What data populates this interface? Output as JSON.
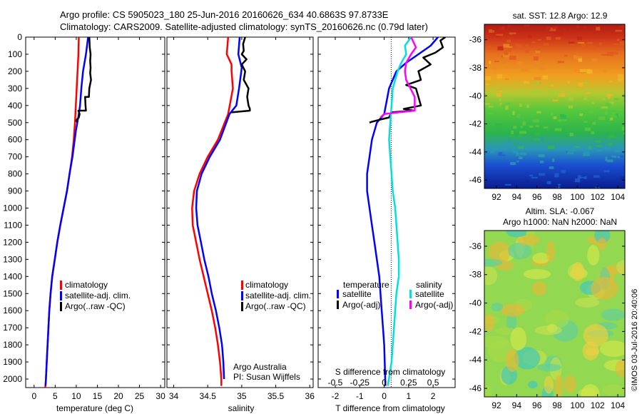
{
  "title": {
    "line1": "Argo profile: CS 5905023_180 25-Jun-2016 20160626_634 40.6863S 97.8733E",
    "line2": "Climatology: CARS2009. Satellite-adjusted climatology: synTS_20160626.nc (0.79d later)"
  },
  "depth_ticks": [
    "0",
    "100",
    "200",
    "300",
    "400",
    "500",
    "600",
    "700",
    "800",
    "900",
    "1000",
    "1100",
    "1200",
    "1300",
    "1400",
    "1500",
    "1600",
    "1700",
    "1800",
    "1900",
    "2000"
  ],
  "legend": {
    "climatology": "climatology",
    "satellite": "satellite-adj. clim.",
    "argo": "Argo(..raw -QC)"
  },
  "diff_legend": {
    "temperature_title": "temperature",
    "salinity_title": "salinity",
    "satellite": "satellite",
    "argo": "Argo(-adj)"
  },
  "annotations": {
    "org": "Argo Australia",
    "pi": "PI: Susan Wijffels",
    "s_diff_label": "S difference from climatology",
    "credit": "©IMOS 03-Jul-2016 20:40:06"
  },
  "maps": {
    "sst_title": "sat. SST: 12.8 Argo: 12.9",
    "sla_title1": "Altim. SLA: -0.067",
    "sla_title2": "Argo h1000: NaN h2000: NaN",
    "lat_ticks": [
      "-36",
      "-38",
      "-40",
      "-42",
      "-44",
      "-46"
    ],
    "lon_ticks": [
      "92",
      "94",
      "96",
      "98",
      "100",
      "102",
      "104"
    ]
  },
  "colors": {
    "climatology": "#ff0000",
    "satellite": "#0000ff",
    "argo": "#000000",
    "sal_satellite": "#00e0e0",
    "sal_argo": "#ff00ff"
  },
  "chart_data": [
    {
      "type": "line",
      "xlabel": "temperature (deg C)",
      "ylabel": "",
      "xlim": [
        -2,
        31
      ],
      "ylim": [
        2050,
        0
      ],
      "xticks": [
        "0",
        "5",
        "10",
        "15",
        "20",
        "25",
        "30"
      ],
      "series": [
        {
          "name": "climatology",
          "x": [
            10.6,
            10.5,
            10.3,
            10.1,
            9.9,
            9.7,
            9.4,
            9.0,
            8.4,
            7.8,
            7.0,
            6.2,
            5.5,
            4.9,
            4.3,
            3.9,
            3.6,
            3.4,
            3.2,
            3.0,
            2.8,
            2.7,
            2.6
          ],
          "y": [
            0,
            100,
            200,
            300,
            400,
            500,
            600,
            700,
            800,
            900,
            1000,
            1100,
            1200,
            1300,
            1400,
            1500,
            1600,
            1700,
            1800,
            1900,
            2000,
            2040,
            2050
          ]
        },
        {
          "name": "satellite-adj. clim.",
          "x": [
            12.8,
            12.3,
            11.6,
            11.2,
            10.9,
            10.6,
            9.9,
            9.1,
            8.4,
            7.8,
            7.0,
            6.2,
            5.5,
            4.9,
            4.3,
            3.9,
            3.6,
            3.4,
            3.2,
            3.0,
            2.8,
            2.7
          ],
          "y": [
            0,
            100,
            200,
            300,
            400,
            450,
            550,
            700,
            800,
            900,
            1000,
            1100,
            1200,
            1300,
            1400,
            1500,
            1600,
            1700,
            1800,
            1900,
            2000,
            2040
          ]
        },
        {
          "name": "Argo(..raw -QC)",
          "x": [
            13.1,
            13.2,
            13.4,
            13.3,
            13.4,
            13.3,
            13.5,
            13.1,
            13.0,
            12.1,
            12.2,
            12.3,
            10.5,
            10.8,
            10.6,
            10.2,
            10.0,
            10.3
          ],
          "y": [
            0,
            60,
            100,
            140,
            180,
            210,
            250,
            300,
            350,
            350,
            400,
            430,
            430,
            450,
            470,
            480,
            490,
            500
          ]
        }
      ]
    },
    {
      "type": "line",
      "xlabel": "salinity",
      "ylabel": "",
      "xlim": [
        33.9,
        36.05
      ],
      "ylim": [
        2050,
        0
      ],
      "xticks": [
        "34",
        "34.5",
        "35",
        "35.5",
        "36"
      ],
      "series": [
        {
          "name": "climatology",
          "x": [
            34.8,
            34.78,
            34.85,
            34.85,
            34.87,
            34.8,
            34.65,
            34.5,
            34.38,
            34.3,
            34.27,
            34.28,
            34.33,
            34.38,
            34.44,
            34.5,
            34.56,
            34.61,
            34.65,
            34.68,
            34.7,
            34.7
          ],
          "y": [
            0,
            100,
            160,
            200,
            300,
            450,
            600,
            700,
            800,
            900,
            1000,
            1100,
            1200,
            1300,
            1400,
            1500,
            1600,
            1700,
            1800,
            1900,
            2000,
            2040
          ]
        },
        {
          "name": "satellite-adj. clim.",
          "x": [
            34.97,
            34.95,
            35.0,
            34.96,
            34.92,
            34.82,
            34.68,
            34.53,
            34.41,
            34.34,
            34.33,
            34.35,
            34.4,
            34.45,
            34.51,
            34.56,
            34.62,
            34.67,
            34.71,
            34.73,
            34.74
          ],
          "y": [
            0,
            100,
            180,
            300,
            400,
            450,
            600,
            700,
            800,
            900,
            1000,
            1100,
            1200,
            1300,
            1400,
            1500,
            1600,
            1700,
            1800,
            1900,
            2000
          ]
        },
        {
          "name": "Argo(..raw -QC)",
          "x": [
            35.05,
            35.02,
            35.03,
            35.0,
            35.07,
            35.0,
            35.05,
            35.03,
            35.1,
            35.08,
            35.1,
            35.12,
            35.12,
            34.85
          ],
          "y": [
            0,
            40,
            80,
            100,
            130,
            160,
            200,
            250,
            300,
            350,
            400,
            420,
            430,
            440
          ]
        }
      ]
    },
    {
      "type": "line",
      "xlabel": "T difference from climatology",
      "ylabel": "",
      "xlim": [
        -2.7,
        2.9
      ],
      "ylim": [
        2050,
        0
      ],
      "xticks": [
        "-2",
        "-1",
        "0",
        "1",
        "2"
      ],
      "xlabel_top": "S difference from climatology",
      "xticks_top_values": [
        -2,
        -1,
        0,
        1,
        2
      ],
      "xticks_top": [
        "-0.5",
        "-0.25",
        "0",
        "0.25",
        "0.5"
      ],
      "series": [
        {
          "name": "temperature satellite",
          "axis": "T",
          "x": [
            2.2,
            1.9,
            1.4,
            0.9,
            0.5,
            0.2,
            0.0,
            -0.3,
            -0.5,
            -0.6,
            -0.7,
            -0.7,
            -0.6,
            -0.5,
            -0.4,
            -0.3,
            -0.2,
            -0.15,
            -0.1,
            -0.05,
            0.0,
            0.05
          ],
          "y": [
            0,
            50,
            100,
            150,
            200,
            300,
            450,
            500,
            600,
            700,
            800,
            900,
            1000,
            1100,
            1200,
            1300,
            1400,
            1500,
            1600,
            1700,
            1800,
            2040
          ]
        },
        {
          "name": "temperature Argo(-adj)",
          "axis": "T",
          "x": [
            2.5,
            2.3,
            2.4,
            2.1,
            1.6,
            1.9,
            1.4,
            1.5,
            0.9,
            1.3,
            1.4,
            1.5,
            0.8,
            1.2,
            0.3,
            0.2,
            -0.1,
            -0.5,
            -0.6
          ],
          "y": [
            0,
            20,
            60,
            90,
            120,
            160,
            200,
            250,
            280,
            300,
            350,
            400,
            420,
            430,
            440,
            470,
            480,
            495,
            500
          ]
        },
        {
          "name": "salinity satellite",
          "axis": "S",
          "x": [
            1.1,
            0.85,
            0.9,
            0.7,
            0.55,
            0.35,
            0.3,
            0.25,
            0.2,
            0.25,
            0.3,
            0.35,
            0.45,
            0.5,
            0.55,
            0.6,
            0.6,
            0.5,
            0.4,
            0.3,
            0.15
          ],
          "y": [
            0,
            50,
            100,
            150,
            200,
            300,
            400,
            500,
            600,
            700,
            800,
            900,
            1000,
            1100,
            1200,
            1300,
            1400,
            1500,
            1700,
            1900,
            2040
          ]
        },
        {
          "name": "salinity Argo(-adj)",
          "axis": "S",
          "x": [
            1.1,
            1.3,
            1.1,
            0.9,
            0.85,
            0.9,
            1.25,
            1.25,
            0.6,
            0.0,
            -0.15
          ],
          "y": [
            0,
            60,
            100,
            150,
            200,
            250,
            350,
            430,
            440,
            450,
            470
          ]
        }
      ]
    }
  ]
}
